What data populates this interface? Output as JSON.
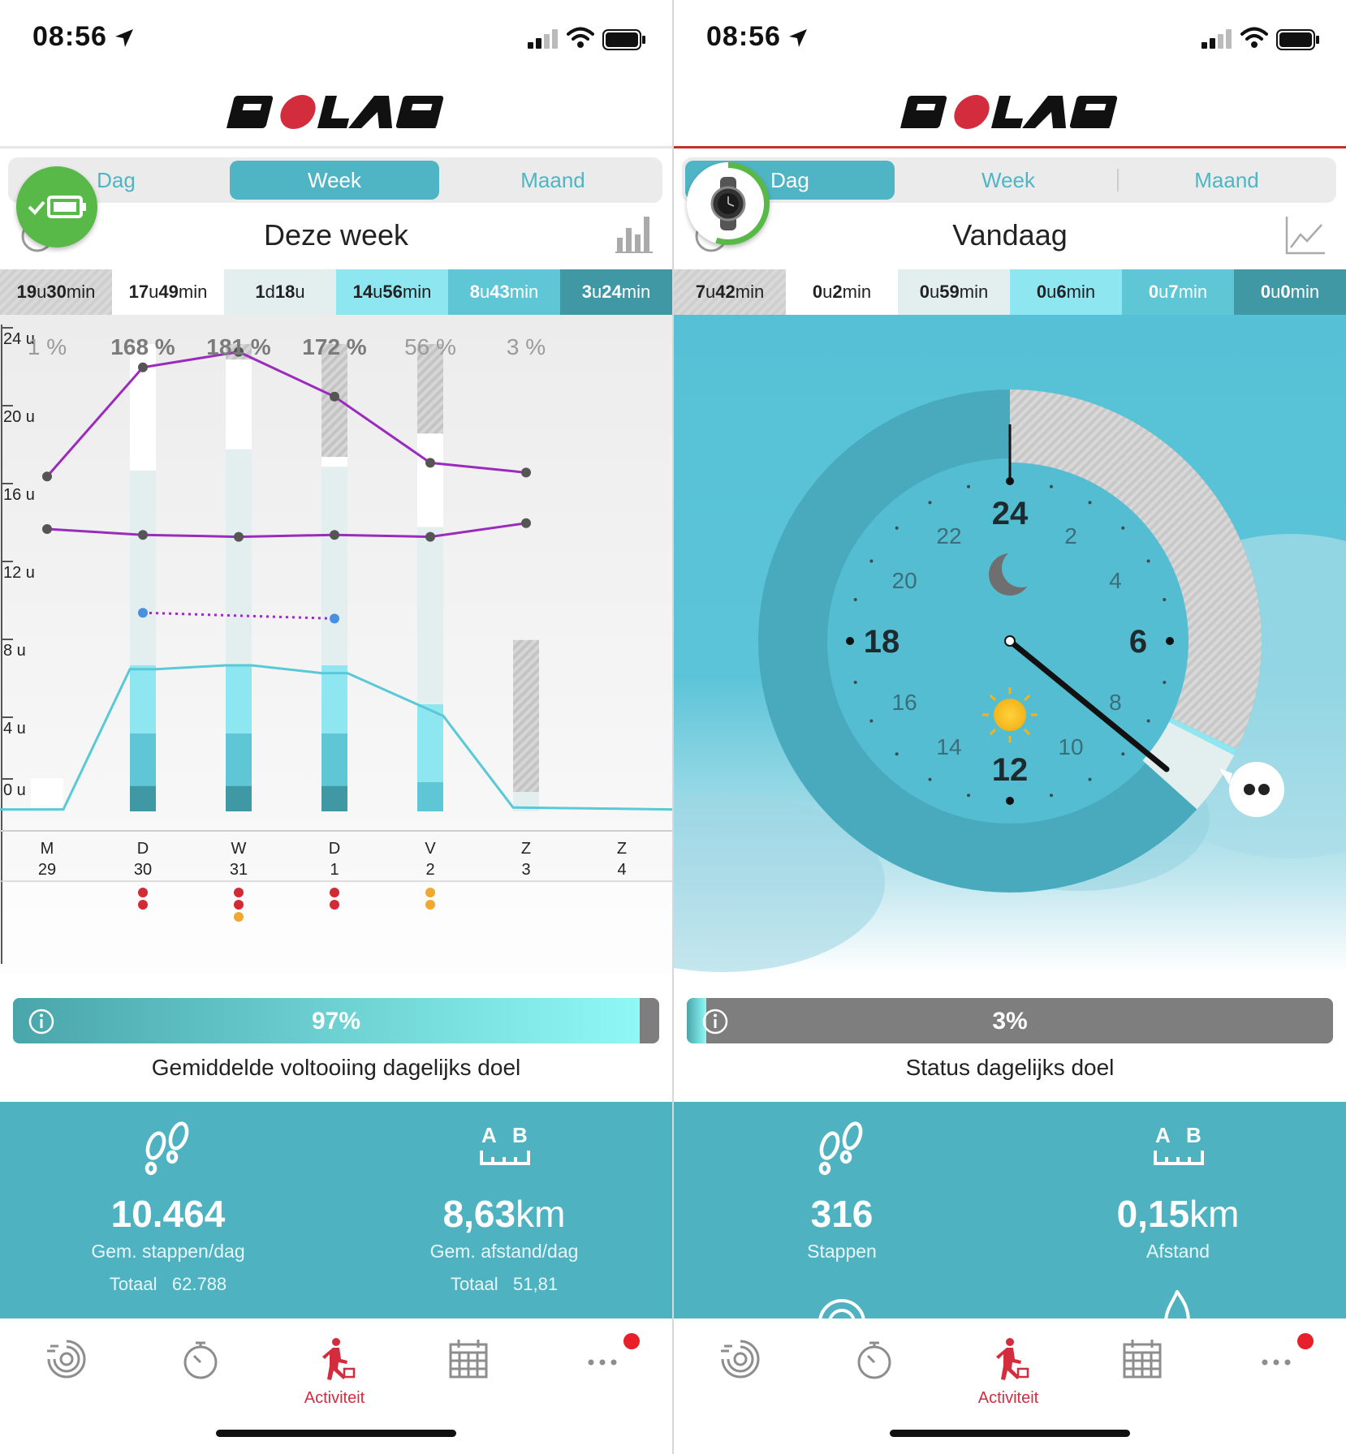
{
  "left": {
    "status_time": "08:56",
    "brand": "POLAR",
    "tabs": [
      {
        "label": "Dag",
        "active": false
      },
      {
        "label": "Week",
        "active": true
      },
      {
        "label": "Maand",
        "active": false
      }
    ],
    "period_title": "Deze week",
    "activity_levels": [
      {
        "value": "19",
        "unit1": "u",
        "value2": "30",
        "unit2": "min"
      },
      {
        "value": "17",
        "unit1": "u",
        "value2": "49",
        "unit2": "min"
      },
      {
        "value": "1",
        "unit1": "d",
        "value2": "18",
        "unit2": "u"
      },
      {
        "value": "14",
        "unit1": "u",
        "value2": "56",
        "unit2": "min"
      },
      {
        "value": "8",
        "unit1": "u",
        "value2": "43",
        "unit2": "min"
      },
      {
        "value": "3",
        "unit1": "u",
        "value2": "24",
        "unit2": "min"
      }
    ],
    "chart_data": {
      "type": "bar",
      "title": "",
      "percentages": [
        "1 %",
        "168 %",
        "181 %",
        "172 %",
        "56 %",
        "3 %"
      ],
      "y_ticks": [
        "24 u",
        "20 u",
        "16 u",
        "12 u",
        "8 u",
        "4 u",
        "0 u"
      ],
      "ylim": [
        0,
        24
      ],
      "days": [
        {
          "day": "M",
          "date": "29"
        },
        {
          "day": "D",
          "date": "30"
        },
        {
          "day": "W",
          "date": "31"
        },
        {
          "day": "D",
          "date": "1"
        },
        {
          "day": "V",
          "date": "2"
        },
        {
          "day": "Z",
          "date": "3"
        },
        {
          "day": "Z",
          "date": "4"
        }
      ],
      "series": [
        {
          "values": [
            17.2,
            22.8,
            23.6,
            21.3,
            17.9,
            17.4
          ]
        },
        {
          "values": [
            14.5,
            14.2,
            14.1,
            14.2,
            14.1,
            14.8
          ]
        },
        {
          "values": [
            null,
            10.2,
            null,
            9.9,
            null,
            null
          ]
        },
        {
          "values": [
            0.4,
            7.3,
            7.5,
            7.1,
            4.9,
            0.2,
            0.1
          ]
        }
      ],
      "bars": [
        {
          "total": 1.7
        },
        {
          "total": 24,
          "white_top": 24,
          "white_bottom": 17.5
        },
        {
          "total": 24,
          "white_top": 23.2,
          "white_bottom": 18.6
        },
        {
          "total": 24,
          "white_top": 18.2,
          "white_bottom": 17.7
        },
        {
          "total": 24,
          "white_top": 19.4,
          "white_bottom": 14.6
        },
        {
          "total": 8.8
        }
      ],
      "event_dots": [
        [],
        [
          "#d22b35",
          "#d22b35"
        ],
        [
          "#d22b35",
          "#d22b35",
          "#f0a830"
        ],
        [
          "#d22b35",
          "#d22b35"
        ],
        [
          "#f0a830",
          "#f0a830"
        ],
        [],
        []
      ]
    },
    "goal_percent": "97%",
    "goal_fraction": 0.97,
    "goal_caption": "Gemiddelde voltooiing dagelijks doel",
    "steps_value": "10.464",
    "steps_label": "Gem. stappen/dag",
    "steps_total_label": "Totaal",
    "steps_total": "62.788",
    "dist_value": "8,63",
    "dist_unit": "km",
    "dist_label": "Gem. afstand/dag",
    "dist_total_label": "Totaal",
    "dist_total": "51,81",
    "nav_active_label": "Activiteit"
  },
  "right": {
    "status_time": "08:56",
    "brand": "POLAR",
    "tabs": [
      {
        "label": "Dag",
        "active": true
      },
      {
        "label": "Week",
        "active": false
      },
      {
        "label": "Maand",
        "active": false
      }
    ],
    "period_title": "Vandaag",
    "activity_levels": [
      {
        "value": "7",
        "unit1": "u",
        "value2": "42",
        "unit2": "min"
      },
      {
        "value": "0",
        "unit1": "u",
        "value2": "2",
        "unit2": "min"
      },
      {
        "value": "0",
        "unit1": "u",
        "value2": "59",
        "unit2": "min"
      },
      {
        "value": "0",
        "unit1": "u",
        "value2": "6",
        "unit2": "min"
      },
      {
        "value": "0",
        "unit1": "u",
        "value2": "7",
        "unit2": "min"
      },
      {
        "value": "0",
        "unit1": "u",
        "value2": "0",
        "unit2": "min"
      }
    ],
    "dial_hours_major": [
      "24",
      "6",
      "12",
      "18"
    ],
    "dial_hours_minor": [
      "2",
      "4",
      "8",
      "10",
      "14",
      "16",
      "20",
      "22"
    ],
    "goal_percent": "3%",
    "goal_fraction": 0.03,
    "goal_caption": "Status dagelijks doel",
    "steps_value": "316",
    "steps_label": "Stappen",
    "dist_value": "0,15",
    "dist_unit": "km",
    "dist_label": "Afstand",
    "nav_active_label": "Activiteit"
  },
  "ab_letters": [
    "A",
    "B"
  ],
  "colors": {
    "accent": "#4fb5c4",
    "brand_red": "#d32d3d",
    "line_purple": "#9b2bbd",
    "line_cyan": "#58c9d6"
  }
}
